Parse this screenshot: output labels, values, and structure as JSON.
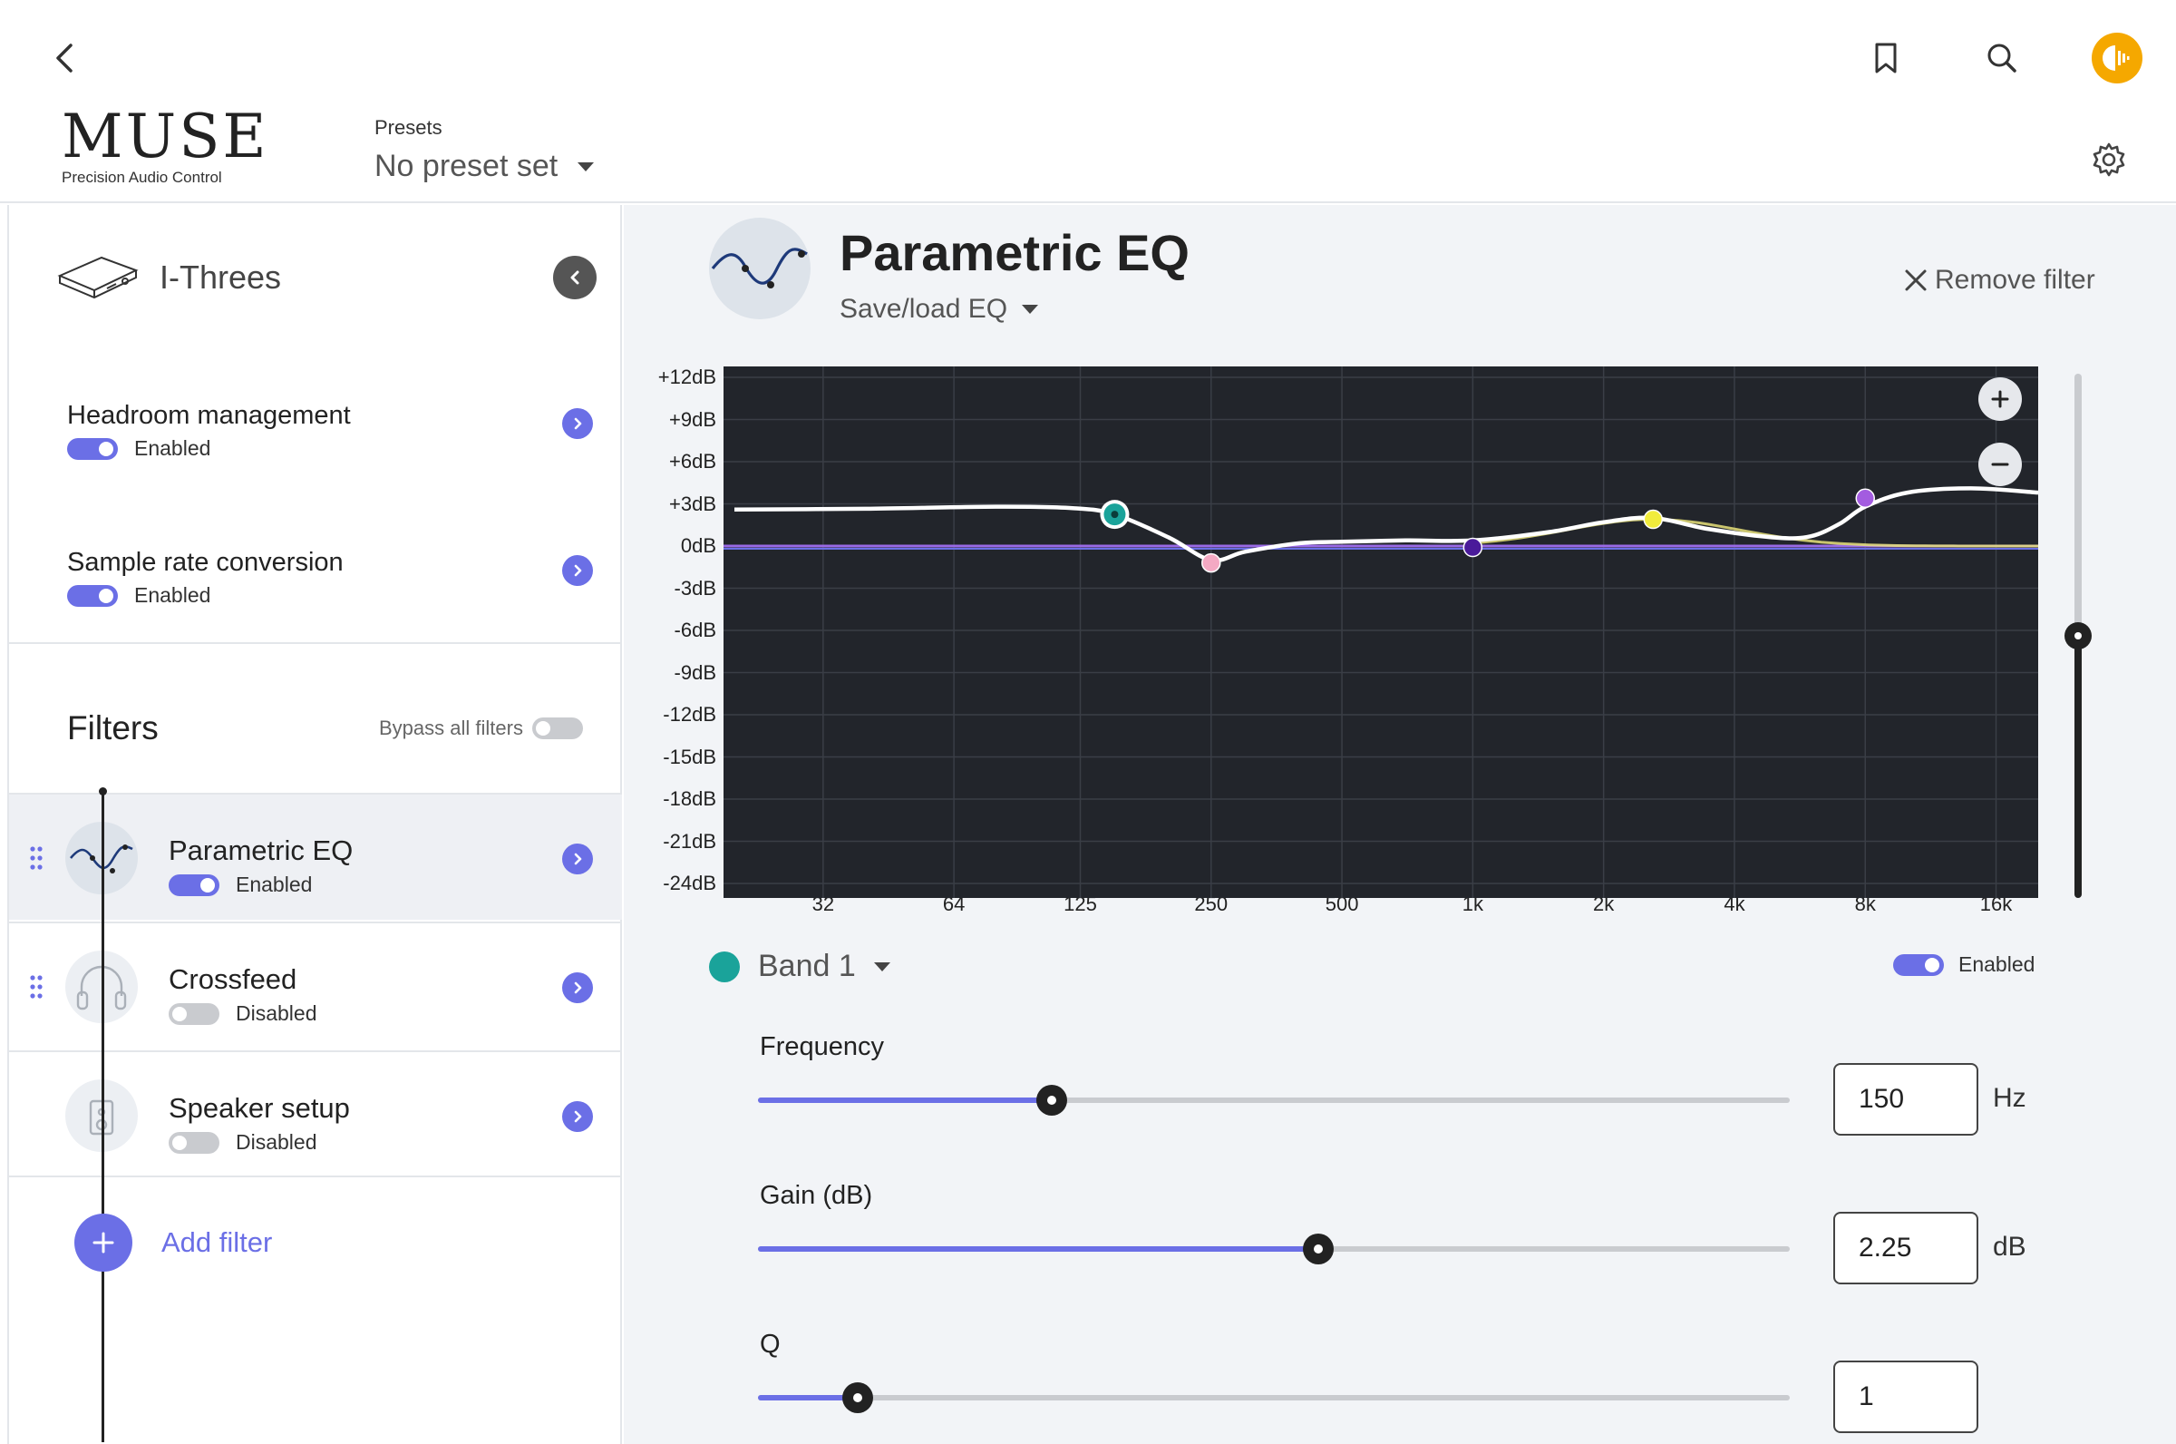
{
  "header": {
    "logo_word": "MUSE",
    "logo_sub": "Precision Audio Control",
    "presets_label": "Presets",
    "presets_value": "No preset set"
  },
  "sidebar": {
    "device_name": "I-Threes",
    "settings": [
      {
        "title": "Headroom management",
        "status": "Enabled",
        "enabled": true
      },
      {
        "title": "Sample rate conversion",
        "status": "Enabled",
        "enabled": true
      }
    ],
    "filters_title": "Filters",
    "bypass_label": "Bypass all filters",
    "filters": [
      {
        "name": "Parametric EQ",
        "status": "Enabled",
        "enabled": true,
        "icon": "eq-curve-icon"
      },
      {
        "name": "Crossfeed",
        "status": "Disabled",
        "enabled": false,
        "icon": "headphones-icon"
      },
      {
        "name": "Speaker setup",
        "status": "Disabled",
        "enabled": false,
        "icon": "speaker-icon"
      }
    ],
    "add_filter": "Add filter"
  },
  "main": {
    "title": "Parametric EQ",
    "save_load": "Save/load EQ",
    "remove_filter": "Remove filter",
    "band_label": "Band 1",
    "band_status": "Enabled",
    "params": {
      "frequency": {
        "label": "Frequency",
        "value": "150",
        "unit": "Hz",
        "position": 0.285
      },
      "gain": {
        "label": "Gain (dB)",
        "value": "2.25",
        "unit": "dB",
        "position": 0.543
      },
      "q": {
        "label": "Q",
        "value": "1",
        "position": 0.097
      }
    },
    "preamp_level": 0.5
  },
  "chart_data": {
    "type": "line",
    "y_ticks": [
      "+12dB",
      "+9dB",
      "+6dB",
      "+3dB",
      "0dB",
      "-3dB",
      "-6dB",
      "-9dB",
      "-12dB",
      "-15dB",
      "-18dB",
      "-21dB",
      "-24dB"
    ],
    "ylim": [
      -24,
      12
    ],
    "x_ticks": [
      "32",
      "64",
      "125",
      "250",
      "500",
      "1k",
      "2k",
      "4k",
      "8k",
      "16k"
    ],
    "x_tick_hz": [
      32,
      64,
      125,
      250,
      500,
      1000,
      2000,
      4000,
      8000,
      16000
    ],
    "xlim_hz": [
      20,
      20000
    ],
    "x_scale": "log",
    "background": "#22252b",
    "grid": true,
    "bands": [
      {
        "freq": 150,
        "gain": 2.25,
        "color": "#1aa39a"
      },
      {
        "freq": 250,
        "gain": -1.2,
        "color": "#f4a9c3"
      },
      {
        "freq": 1000,
        "gain": -0.1,
        "color": "#4a1a9a"
      },
      {
        "freq": 2600,
        "gain": 1.9,
        "color": "#f1ec3c"
      },
      {
        "freq": 8000,
        "gain": 3.4,
        "color": "#a35ce0"
      }
    ],
    "response_curve": [
      [
        20,
        2.6
      ],
      [
        40,
        2.65
      ],
      [
        80,
        2.8
      ],
      [
        120,
        2.7
      ],
      [
        150,
        2.25
      ],
      [
        200,
        0.6
      ],
      [
        250,
        -1.0
      ],
      [
        300,
        -0.4
      ],
      [
        400,
        0.2
      ],
      [
        500,
        0.3
      ],
      [
        700,
        0.4
      ],
      [
        1000,
        0.4
      ],
      [
        1500,
        1.0
      ],
      [
        2000,
        1.7
      ],
      [
        2600,
        2.0
      ],
      [
        3500,
        1.2
      ],
      [
        5000,
        0.6
      ],
      [
        6000,
        0.7
      ],
      [
        7000,
        1.6
      ],
      [
        8000,
        2.8
      ],
      [
        10000,
        3.8
      ],
      [
        14000,
        4.1
      ],
      [
        20000,
        3.8
      ]
    ]
  }
}
